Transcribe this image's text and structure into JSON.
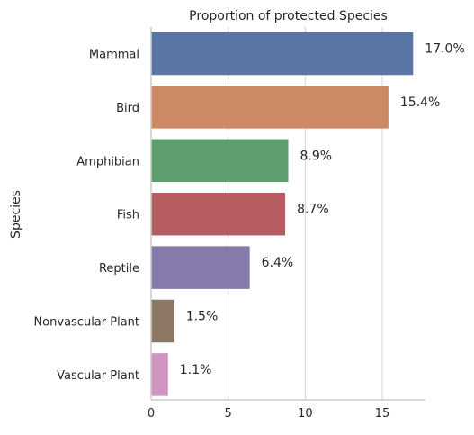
{
  "chart_data": {
    "type": "bar",
    "orientation": "horizontal",
    "title": "Proportion of protected Species",
    "ylabel": "Species",
    "xlabel": "",
    "categories": [
      "Mammal",
      "Bird",
      "Amphibian",
      "Fish",
      "Reptile",
      "Nonvascular Plant",
      "Vascular Plant"
    ],
    "values": [
      17.0,
      15.4,
      8.9,
      8.7,
      6.4,
      1.5,
      1.1
    ],
    "data_labels": [
      "17.0%",
      "15.4%",
      "8.9%",
      "8.7%",
      "6.4%",
      "1.5%",
      "1.1%"
    ],
    "colors": [
      "#5975a4",
      "#cc8963",
      "#5f9e6e",
      "#b55d60",
      "#857aab",
      "#8d7866",
      "#d095bf"
    ],
    "xlim": [
      0,
      17.8
    ],
    "xticks": [
      0,
      5,
      10,
      15
    ],
    "xtick_labels": [
      "0",
      "5",
      "10",
      "15"
    ],
    "grid": "vertical",
    "axis_color": "#cccccc"
  }
}
